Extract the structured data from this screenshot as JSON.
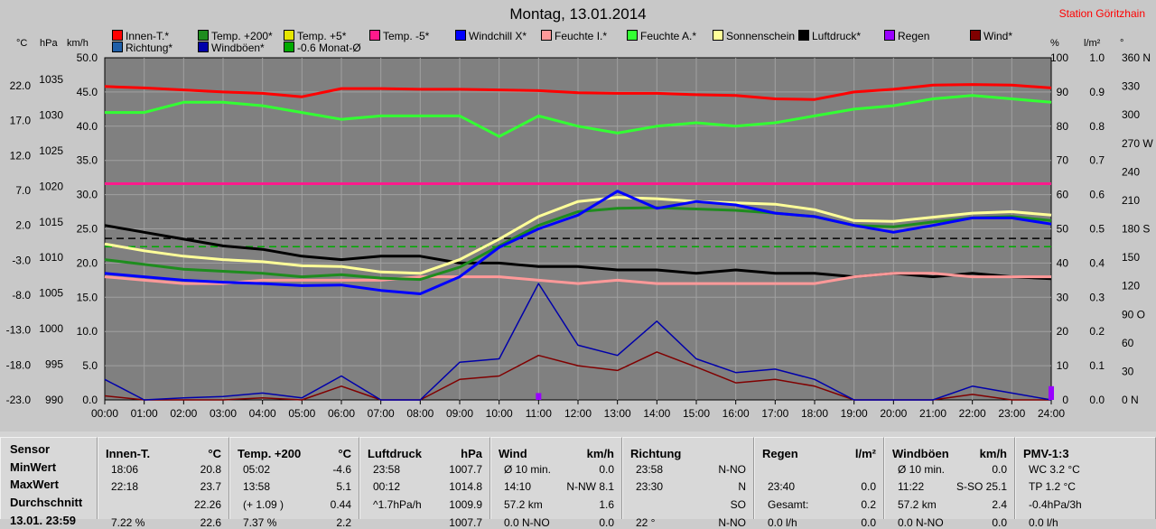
{
  "title": "Montag, 13.01.2014",
  "station": "Station Göritzhain",
  "legend": [
    {
      "label": "Innen-T.*",
      "color": "#ff0000"
    },
    {
      "label": "Temp. +200*",
      "color": "#1e8c1e"
    },
    {
      "label": "Temp. +5*",
      "color": "#e6e600"
    },
    {
      "label": "Temp. -5*",
      "color": "#ff1a8c"
    },
    {
      "label": "Windchill X*",
      "color": "#0000ff"
    },
    {
      "label": "Feuchte I.*",
      "color": "#ff9999"
    },
    {
      "label": "Feuchte A.*",
      "color": "#33ff33"
    },
    {
      "label": "Sonnenschein",
      "color": "#ffff99"
    },
    {
      "label": "Luftdruck*",
      "color": "#000000"
    },
    {
      "label": "Regen",
      "color": "#9900ff"
    },
    {
      "label": "Wind*",
      "color": "#800000"
    },
    {
      "label": "Richtung*",
      "color": "#1f5fa8"
    },
    {
      "label": "Windböen*",
      "color": "#0000aa"
    },
    {
      "label": "-0.6 Monat-Ø",
      "color": "#00aa00"
    }
  ],
  "axis_units": {
    "temp": "°C",
    "pressure": "hPa",
    "wind": "km/h",
    "percent": "%",
    "rain": "l/m²",
    "degree": "°"
  },
  "chart_data": {
    "type": "line",
    "x": [
      "00:00",
      "01:00",
      "02:00",
      "03:00",
      "04:00",
      "05:00",
      "06:00",
      "07:00",
      "08:00",
      "09:00",
      "10:00",
      "11:00",
      "12:00",
      "13:00",
      "14:00",
      "15:00",
      "16:00",
      "17:00",
      "18:00",
      "19:00",
      "20:00",
      "21:00",
      "22:00",
      "23:00",
      "24:00"
    ],
    "yaxes": {
      "temp": {
        "ticks": [
          "22.0",
          "17.0",
          "12.0",
          "7.0",
          "2.0",
          "-3.0",
          "-8.0",
          "-13.0",
          "-18.0",
          "-23.0"
        ],
        "range": [
          -23,
          27
        ]
      },
      "pressure": {
        "ticks": [
          "1035",
          "1030",
          "1025",
          "1020",
          "1015",
          "1010",
          "1005",
          "1000",
          "995",
          "990"
        ],
        "range": [
          990,
          1040
        ]
      },
      "wind": {
        "ticks": [
          "50.0",
          "45.0",
          "40.0",
          "35.0",
          "30.0",
          "25.0",
          "20.0",
          "15.0",
          "10.0",
          "5.0",
          "0.0"
        ],
        "range": [
          0,
          50
        ]
      },
      "percent": {
        "ticks": [
          "100",
          "90",
          "80",
          "70",
          "60",
          "50",
          "40",
          "30",
          "20",
          "10",
          "0"
        ],
        "range": [
          0,
          100
        ]
      },
      "rain": {
        "ticks": [
          "1.0",
          "0.9",
          "0.8",
          "0.7",
          "0.6",
          "0.5",
          "0.4",
          "0.3",
          "0.2",
          "0.1",
          "0.0"
        ],
        "range": [
          0,
          1
        ]
      },
      "direction": {
        "ticks": [
          "360 N",
          "330",
          "300",
          "270 W",
          "240",
          "210",
          "180 S",
          "150",
          "120",
          "90 O",
          "60",
          "30",
          "0 N"
        ],
        "range": [
          0,
          360
        ]
      }
    },
    "series": [
      {
        "name": "Innen-T.*",
        "color": "#ff0000",
        "axis": "temp",
        "values": [
          22.8,
          22.6,
          22.3,
          22.0,
          21.8,
          21.3,
          22.5,
          22.5,
          22.4,
          22.4,
          22.3,
          22.2,
          21.9,
          21.8,
          21.8,
          21.6,
          21.5,
          21.0,
          20.9,
          22.0,
          22.4,
          23.0,
          23.1,
          23.0,
          22.6
        ]
      },
      {
        "name": "Feuchte A.*",
        "color": "#33ff33",
        "axis": "percent",
        "values": [
          84,
          84,
          87,
          87,
          86,
          84,
          82,
          83,
          83,
          83,
          77,
          83,
          80,
          78,
          80,
          81,
          80,
          81,
          83,
          85,
          86,
          88,
          89,
          88,
          87
        ]
      },
      {
        "name": "Temp. -5*",
        "color": "#ff1a8c",
        "axis": "temp",
        "values": [
          8.6,
          8.6,
          8.6,
          8.6,
          8.6,
          8.6,
          8.6,
          8.6,
          8.6,
          8.6,
          8.6,
          8.6,
          8.6,
          8.6,
          8.6,
          8.6,
          8.6,
          8.6,
          8.6,
          8.6,
          8.6,
          8.6,
          8.6,
          8.6,
          8.6
        ]
      },
      {
        "name": "Luftdruck*",
        "color": "#000000",
        "axis": "pressure",
        "values": [
          1015.5,
          1014.5,
          1013.5,
          1012.5,
          1012.0,
          1011.0,
          1010.5,
          1011.0,
          1011.0,
          1010.0,
          1010.0,
          1009.5,
          1009.5,
          1009.0,
          1009.0,
          1008.5,
          1009.0,
          1008.5,
          1008.5,
          1008.0,
          1008.5,
          1008.0,
          1008.5,
          1008.0,
          1007.7
        ]
      },
      {
        "name": "Feuchte I.*",
        "color": "#ff9999",
        "axis": "percent",
        "values": [
          36,
          35,
          34,
          34,
          35,
          35,
          35,
          35,
          36,
          36,
          36,
          35,
          34,
          35,
          34,
          34,
          34,
          34,
          34,
          36,
          37,
          37,
          36,
          36,
          36
        ]
      },
      {
        "name": "Sonnenschein",
        "color": "#ffff99",
        "axis": "temp",
        "values": [
          -0.2,
          -1.2,
          -2.0,
          -2.5,
          -2.8,
          -3.4,
          -3.5,
          -4.3,
          -4.5,
          -2.5,
          0.5,
          3.8,
          6.0,
          6.6,
          6.4,
          6.0,
          5.8,
          5.6,
          4.8,
          3.2,
          3.1,
          3.7,
          4.3,
          4.5,
          4.0
        ]
      },
      {
        "name": "Temp. +200*",
        "color": "#1e8c1e",
        "axis": "temp",
        "values": [
          -2.5,
          -3.2,
          -3.9,
          -4.2,
          -4.5,
          -5.0,
          -4.7,
          -5.2,
          -5.4,
          -3.6,
          -0.5,
          2.5,
          4.5,
          5.0,
          5.1,
          4.9,
          4.7,
          4.3,
          3.8,
          2.5,
          2.3,
          3.0,
          3.6,
          3.8,
          3.2
        ]
      },
      {
        "name": "Windchill X*",
        "color": "#0000ff",
        "axis": "temp",
        "values": [
          -4.5,
          -5.0,
          -5.5,
          -5.8,
          -6.0,
          -6.3,
          -6.2,
          -7.0,
          -7.5,
          -5.0,
          -0.7,
          2.0,
          4.0,
          7.5,
          5.0,
          6.0,
          5.5,
          4.3,
          3.8,
          2.5,
          1.5,
          2.5,
          3.6,
          3.6,
          2.7
        ]
      },
      {
        "name": "Wind*",
        "color": "#800000",
        "axis": "wind",
        "values": [
          0.6,
          0.0,
          0.0,
          0.0,
          0.3,
          0.0,
          2.0,
          0.0,
          0.0,
          3.0,
          3.5,
          6.5,
          5.0,
          4.3,
          7.0,
          4.8,
          2.5,
          3.0,
          2.0,
          0.0,
          0.0,
          0.0,
          0.8,
          0.0,
          0.0
        ]
      },
      {
        "name": "Windböen*",
        "color": "#0000aa",
        "axis": "wind",
        "values": [
          3.0,
          0.0,
          0.3,
          0.5,
          1.0,
          0.3,
          3.5,
          0.0,
          0.0,
          5.5,
          6.0,
          17.0,
          8.0,
          6.5,
          11.5,
          6.0,
          4.0,
          4.5,
          3.0,
          0.0,
          0.0,
          0.0,
          2.0,
          1.0,
          0.0
        ]
      },
      {
        "name": "Regen",
        "color": "#9900ff",
        "axis": "rain",
        "values": [
          0,
          0,
          0,
          0,
          0,
          0,
          0,
          0,
          0,
          0,
          0,
          0.02,
          0,
          0,
          0,
          0,
          0,
          0,
          0,
          0,
          0,
          0,
          0,
          0,
          0.04
        ]
      }
    ],
    "reference_lines": [
      {
        "color": "#000000",
        "axis": "temp",
        "value": 0.6,
        "style": "dashed"
      },
      {
        "color": "#00aa00",
        "axis": "temp",
        "value": -0.6,
        "style": "dashed"
      }
    ],
    "grid": true
  },
  "table": {
    "row_labels": [
      "Sensor",
      "MinWert",
      "MaxWert",
      "Durchschnitt",
      "13.01. 23:59"
    ],
    "columns": [
      {
        "name": "Innen-T.",
        "unit": "°C",
        "rows": [
          [
            "18:06",
            "20.8"
          ],
          [
            "22:18",
            "23.7"
          ],
          [
            "",
            "22.26"
          ],
          [
            "7.22 %",
            "22.6"
          ]
        ]
      },
      {
        "name": "Temp. +200",
        "unit": "°C",
        "rows": [
          [
            "05:02",
            "-4.6"
          ],
          [
            "13:58",
            "5.1"
          ],
          [
            "(+ 1.09 )",
            "0.44"
          ],
          [
            "7.37 %",
            "2.2"
          ]
        ]
      },
      {
        "name": "Luftdruck",
        "unit": "hPa",
        "rows": [
          [
            "23:58",
            "1007.7"
          ],
          [
            "00:12",
            "1014.8"
          ],
          [
            "^1.7hPa/h",
            "1009.9"
          ],
          [
            "",
            "1007.7"
          ]
        ]
      },
      {
        "name": "Wind",
        "unit": "km/h",
        "rows": [
          [
            "Ø 10 min.",
            "0.0"
          ],
          [
            "14:10",
            "N-NW 8.1"
          ],
          [
            "57.2 km",
            "1.6"
          ],
          [
            "0.0 N-NO",
            "0.0"
          ]
        ]
      },
      {
        "name": "Richtung",
        "unit": "",
        "rows": [
          [
            "23:58",
            "N-NO"
          ],
          [
            "23:30",
            "N"
          ],
          [
            "",
            "SO"
          ],
          [
            "22 °",
            "N-NO"
          ]
        ]
      },
      {
        "name": "Regen",
        "unit": "l/m²",
        "rows": [
          [
            "",
            ""
          ],
          [
            "23:40",
            "0.0"
          ],
          [
            "Gesamt:",
            "0.2"
          ],
          [
            "0.0 l/h",
            "0.0"
          ]
        ]
      },
      {
        "name": "Windböen",
        "unit": "km/h",
        "rows": [
          [
            "Ø 10 min.",
            "0.0"
          ],
          [
            "11:22",
            "S-SO 25.1"
          ],
          [
            "57.2 km",
            "2.4"
          ],
          [
            "0.0 N-NO",
            "0.0"
          ]
        ]
      },
      {
        "name": "PMV-1:3",
        "unit": "",
        "rows": [
          [
            "WC 3.2 °C",
            ""
          ],
          [
            "TP 1.2 °C",
            ""
          ],
          [
            "-0.4hPa/3h",
            ""
          ],
          [
            "0.0 l/h",
            ""
          ]
        ]
      }
    ]
  }
}
